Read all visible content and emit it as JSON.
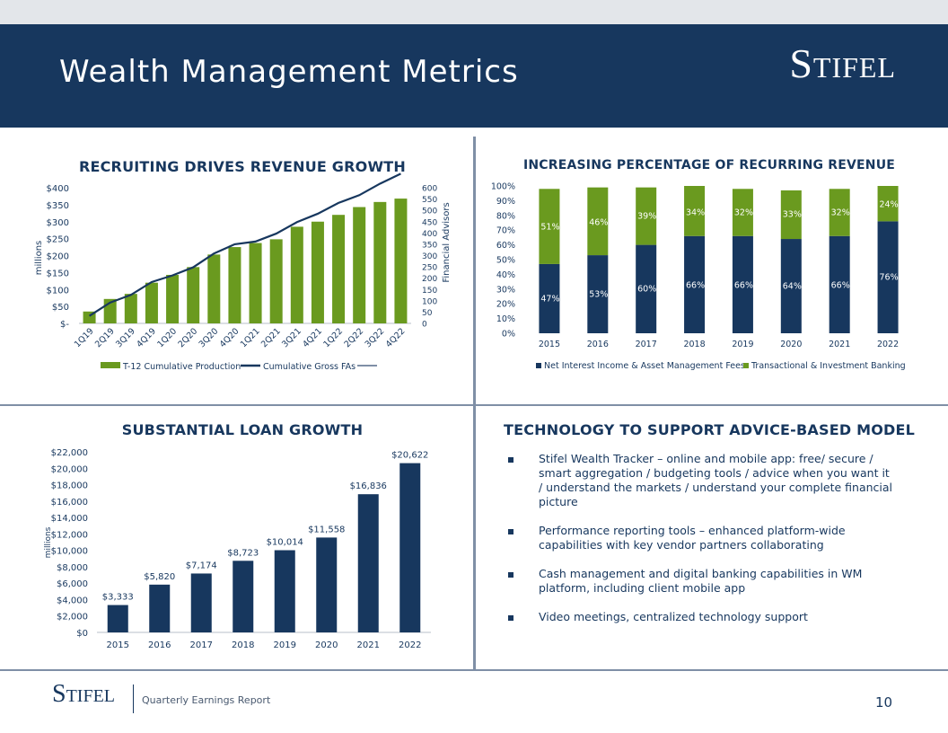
{
  "header": {
    "title": "Wealth Management Metrics",
    "logo": "Stifel"
  },
  "footer": {
    "logo": "Stifel",
    "subtitle": "Quarterly Earnings Report",
    "page_number": "10"
  },
  "chart_data": [
    {
      "id": "recruiting",
      "type": "bar",
      "title": "RECRUITING DRIVES REVENUE GROWTH",
      "ylabel": "millions",
      "y2label": "Financial Advisors",
      "categories": [
        "1Q19",
        "2Q19",
        "3Q19",
        "4Q19",
        "1Q20",
        "2Q20",
        "3Q20",
        "4Q20",
        "1Q21",
        "2Q21",
        "3Q21",
        "4Q21",
        "1Q22",
        "2Q22",
        "3Q22",
        "4Q22"
      ],
      "series": [
        {
          "name": "T-12 Cumulative Production",
          "type": "bar",
          "axis": "left",
          "values": [
            35,
            72,
            87,
            120,
            143,
            166,
            203,
            225,
            237,
            248,
            285,
            300,
            320,
            343,
            358,
            368
          ],
          "color": "#6a9a1f"
        },
        {
          "name": "Cumulative Gross FAs",
          "type": "line",
          "axis": "right",
          "values": [
            33,
            92,
            126,
            183,
            212,
            248,
            309,
            350,
            362,
            397,
            448,
            485,
            533,
            567,
            618,
            662
          ],
          "color": "#17375e"
        }
      ],
      "ylim": [
        0,
        400
      ],
      "y2lim": [
        0,
        600
      ],
      "yticks": [
        "$-",
        "$50",
        "$100",
        "$150",
        "$200",
        "$250",
        "$300",
        "$350",
        "$400"
      ],
      "y2ticks": [
        "0",
        "50",
        "100",
        "150",
        "200",
        "250",
        "300",
        "350",
        "400",
        "450",
        "500",
        "550",
        "600"
      ]
    },
    {
      "id": "recurring",
      "type": "bar",
      "stacked": true,
      "title": "INCREASING PERCENTAGE OF RECURRING REVENUE",
      "categories": [
        "2015",
        "2016",
        "2017",
        "2018",
        "2019",
        "2020",
        "2021",
        "2022"
      ],
      "series": [
        {
          "name": "Net Interest Income & Asset Management Fees",
          "values": [
            47,
            53,
            60,
            66,
            66,
            64,
            66,
            76
          ],
          "color": "#17375e"
        },
        {
          "name": "Transactional & Investment Banking",
          "values": [
            51,
            46,
            39,
            34,
            32,
            33,
            32,
            24
          ],
          "color": "#6a9a1f"
        }
      ],
      "ylim": [
        0,
        100
      ],
      "yticks": [
        "0%",
        "10%",
        "20%",
        "30%",
        "40%",
        "50%",
        "60%",
        "70%",
        "80%",
        "90%",
        "100%"
      ]
    },
    {
      "id": "loans",
      "type": "bar",
      "title": "SUBSTANTIAL LOAN GROWTH",
      "ylabel": "millions",
      "categories": [
        "2015",
        "2016",
        "2017",
        "2018",
        "2019",
        "2020",
        "2021",
        "2022"
      ],
      "values": [
        3333,
        5820,
        7174,
        8723,
        10014,
        11558,
        16836,
        20622
      ],
      "labels": [
        "$3,333",
        "$5,820",
        "$7,174",
        "$8,723",
        "$10,014",
        "$11,558",
        "$16,836",
        "$20,622"
      ],
      "color": "#17375e",
      "ylim": [
        0,
        22000
      ],
      "yticks": [
        "$0",
        "$2,000",
        "$4,000",
        "$6,000",
        "$8,000",
        "$10,000",
        "$12,000",
        "$14,000",
        "$16,000",
        "$18,000",
        "$20,000",
        "$22,000"
      ]
    }
  ],
  "technology": {
    "title": "TECHNOLOGY TO SUPPORT ADVICE-BASED MODEL",
    "bullets": [
      "Stifel Wealth Tracker – online and mobile app:  free/ secure / smart aggregation / budgeting tools / advice when you want it / understand the markets / understand your complete financial picture",
      "Performance reporting tools – enhanced platform-wide capabilities with key vendor partners collaborating",
      "Cash management and digital banking capabilities in WM platform, including client mobile app",
      "Video meetings, centralized technology support"
    ]
  }
}
